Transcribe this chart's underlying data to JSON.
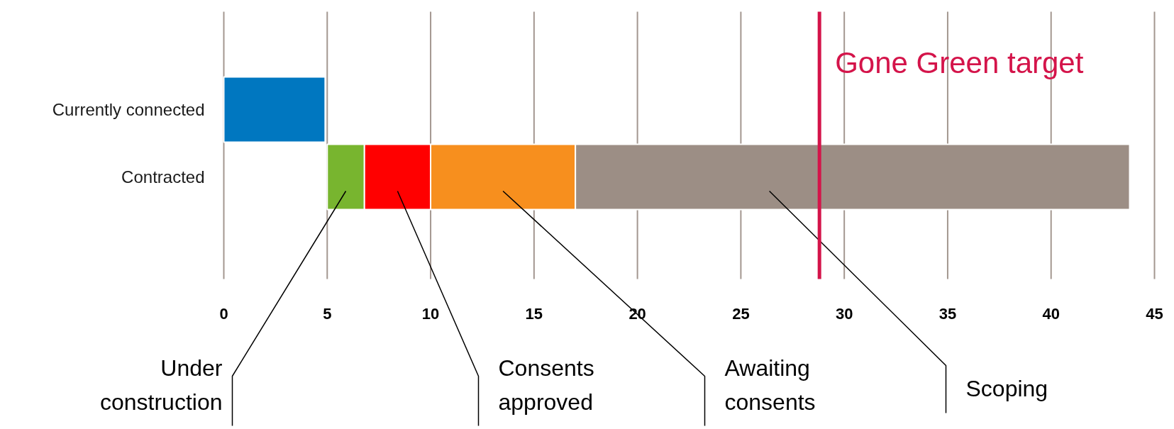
{
  "chart_data": {
    "type": "bar",
    "orientation": "horizontal",
    "categories": [
      "Currently connected",
      "Contracted"
    ],
    "series": [
      {
        "color": "#0077c0",
        "values": [
          4.9,
          null
        ],
        "base": [
          0,
          null
        ]
      },
      {
        "name": "Under construction",
        "color": "#78b52f",
        "values": [
          null,
          1.8
        ],
        "base": [
          null,
          5
        ]
      },
      {
        "name": "Consents approved",
        "color": "#ff0000",
        "values": [
          null,
          3.2
        ],
        "base": [
          null,
          6.8
        ]
      },
      {
        "name": "Awaiting consents",
        "color": "#f78f1e",
        "values": [
          null,
          7.0
        ],
        "base": [
          null,
          10
        ]
      },
      {
        "name": "Scoping",
        "color": "#9c8e85",
        "values": [
          null,
          26.8
        ],
        "base": [
          null,
          17
        ]
      }
    ],
    "xlim": [
      0,
      45
    ],
    "xticks": [
      0,
      5,
      10,
      15,
      20,
      25,
      30,
      35,
      40,
      45
    ],
    "grid": "x",
    "ref_lines": [
      {
        "axis": "x",
        "value": 28.8,
        "label": "Gone Green target",
        "color": "#d4144a"
      }
    ]
  }
}
